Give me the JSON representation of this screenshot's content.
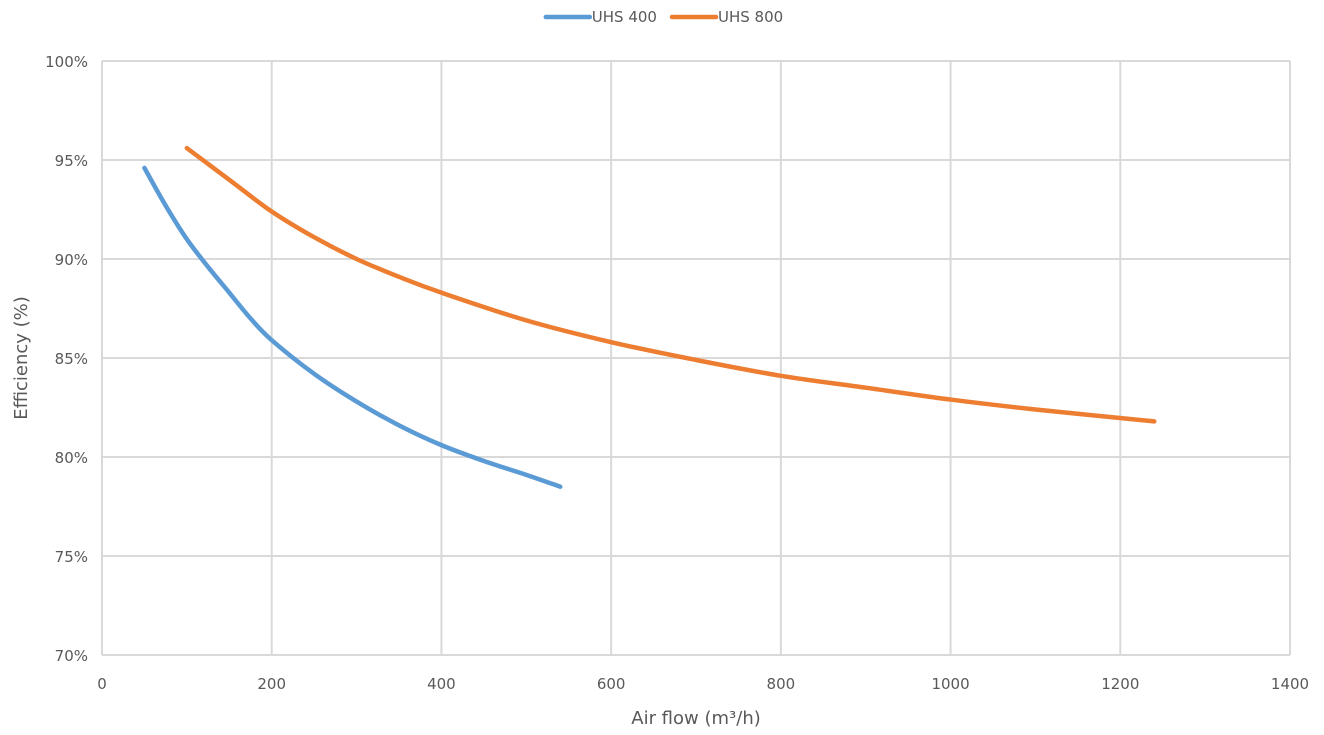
{
  "chart_data": {
    "type": "line",
    "title": "",
    "xlabel": "Air flow (m³/h)",
    "ylabel": "Efficiency (%)",
    "xlim": [
      0,
      1400
    ],
    "ylim": [
      70,
      100
    ],
    "x_ticks": [
      0,
      200,
      400,
      600,
      800,
      1000,
      1200,
      1400
    ],
    "x_tick_labels": [
      "0",
      "200",
      "400",
      "600",
      "800",
      "1000",
      "1200",
      "1400"
    ],
    "y_ticks": [
      70,
      75,
      80,
      85,
      90,
      95,
      100
    ],
    "y_tick_labels": [
      "70%",
      "75%",
      "80%",
      "85%",
      "90%",
      "95%",
      "100%"
    ],
    "grid": true,
    "legend_position": "top-center",
    "series": [
      {
        "name": "UHS 400",
        "color": "#5B9BD5",
        "x": [
          50,
          75,
          100,
          125,
          150,
          175,
          200,
          250,
          300,
          350,
          400,
          450,
          500,
          540
        ],
        "y": [
          94.6,
          92.7,
          91.0,
          89.6,
          88.3,
          87.0,
          85.9,
          84.2,
          82.8,
          81.6,
          80.6,
          79.8,
          79.1,
          78.5
        ]
      },
      {
        "name": "UHS 800",
        "color": "#ED7D31",
        "x": [
          100,
          150,
          200,
          250,
          300,
          350,
          400,
          500,
          600,
          700,
          800,
          900,
          1000,
          1100,
          1240
        ],
        "y": [
          95.6,
          94.0,
          92.4,
          91.1,
          90.0,
          89.1,
          88.3,
          86.9,
          85.8,
          84.9,
          84.1,
          83.5,
          82.9,
          82.4,
          81.8
        ]
      }
    ]
  }
}
